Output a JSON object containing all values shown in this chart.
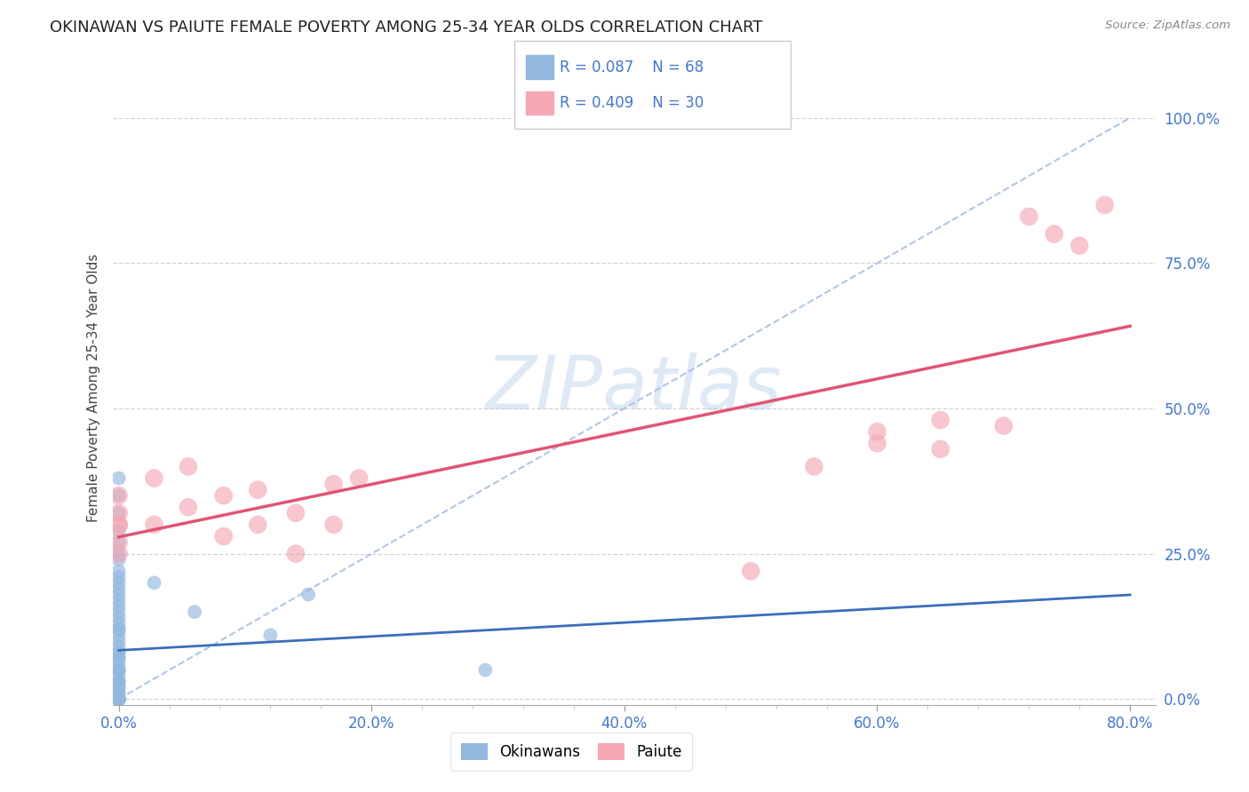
{
  "title": "OKINAWAN VS PAIUTE FEMALE POVERTY AMONG 25-34 YEAR OLDS CORRELATION CHART",
  "source": "Source: ZipAtlas.com",
  "watermark": "ZIPatlas",
  "xlim": [
    -0.005,
    0.82
  ],
  "ylim": [
    -0.01,
    1.08
  ],
  "xticks": [
    0.0,
    0.2,
    0.4,
    0.6,
    0.8
  ],
  "yticks": [
    0.0,
    0.25,
    0.5,
    0.75,
    1.0
  ],
  "xlabel_labels": [
    "0.0%",
    "20.0%",
    "40.0%",
    "60.0%",
    "80.0%"
  ],
  "ylabel_labels": [
    "0.0%",
    "25.0%",
    "50.0%",
    "75.0%",
    "100.0%"
  ],
  "okinawan_color": "#92B8E0",
  "paiute_color": "#F5A8B4",
  "trendline_blue": "#3A6EBB",
  "trendline_pink": "#E05575",
  "diag_color": "#A8C0E0",
  "grid_color": "#C8C8C8",
  "tick_color": "#4477CC",
  "title_color": "#222222",
  "source_color": "#888888",
  "ylabel_text": "Female Poverty Among 25-34 Year Olds",
  "legend_label1": "Okinawans",
  "legend_label2": "Paiute",
  "background": "#FFFFFF",
  "ok_x": [
    0.0,
    0.0,
    0.0,
    0.0,
    0.0,
    0.0,
    0.0,
    0.0,
    0.0,
    0.0,
    0.0,
    0.0,
    0.0,
    0.0,
    0.0,
    0.0,
    0.0,
    0.0,
    0.0,
    0.0,
    0.0,
    0.0,
    0.0,
    0.0,
    0.0,
    0.0,
    0.0,
    0.0,
    0.0,
    0.0,
    0.0,
    0.0,
    0.0,
    0.0,
    0.0,
    0.0,
    0.0,
    0.0,
    0.0,
    0.0,
    0.0,
    0.0,
    0.0,
    0.0,
    0.0,
    0.0,
    0.0,
    0.0,
    0.0,
    0.0,
    0.0,
    0.0,
    0.0,
    0.0,
    0.0,
    0.0,
    0.0,
    0.0,
    0.0,
    0.0,
    0.0,
    0.0,
    0.0,
    0.028,
    0.06,
    0.12,
    0.15,
    0.29
  ],
  "ok_y": [
    0.0,
    0.0,
    0.0,
    0.0,
    0.0,
    0.0,
    0.0,
    0.0,
    0.0,
    0.0,
    0.0,
    0.0,
    0.0,
    0.0,
    0.0,
    0.0,
    0.0,
    0.0,
    0.0,
    0.0,
    0.0,
    0.0,
    0.0,
    0.0,
    0.0,
    0.01,
    0.01,
    0.02,
    0.02,
    0.03,
    0.03,
    0.04,
    0.05,
    0.05,
    0.06,
    0.07,
    0.07,
    0.08,
    0.09,
    0.1,
    0.11,
    0.12,
    0.13,
    0.14,
    0.15,
    0.16,
    0.17,
    0.18,
    0.19,
    0.2,
    0.21,
    0.22,
    0.24,
    0.25,
    0.27,
    0.29,
    0.32,
    0.35,
    0.38,
    0.05,
    0.08,
    0.03,
    0.12,
    0.2,
    0.15,
    0.11,
    0.18,
    0.05
  ],
  "p_x": [
    0.0,
    0.0,
    0.0,
    0.0,
    0.0,
    0.0,
    0.028,
    0.028,
    0.055,
    0.055,
    0.083,
    0.083,
    0.11,
    0.11,
    0.14,
    0.14,
    0.17,
    0.17,
    0.19,
    0.5,
    0.55,
    0.6,
    0.6,
    0.65,
    0.65,
    0.7,
    0.72,
    0.74,
    0.76,
    0.78
  ],
  "p_y": [
    0.3,
    0.35,
    0.3,
    0.32,
    0.27,
    0.25,
    0.3,
    0.38,
    0.4,
    0.33,
    0.35,
    0.28,
    0.36,
    0.3,
    0.32,
    0.25,
    0.37,
    0.3,
    0.38,
    0.22,
    0.4,
    0.44,
    0.46,
    0.48,
    0.43,
    0.47,
    0.83,
    0.8,
    0.78,
    0.85
  ]
}
